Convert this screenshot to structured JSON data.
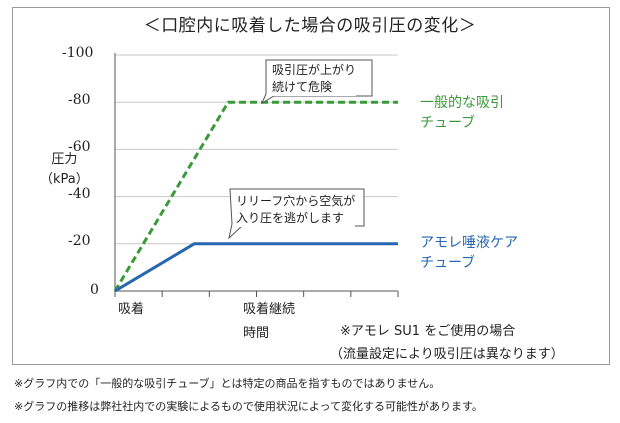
{
  "title": "＜口腔内に吸着した場合の吸引圧の変化＞",
  "chart_data": {
    "type": "line",
    "ylabel_line1": "圧力",
    "ylabel_line2": "（kPa）",
    "xlabel": "時間",
    "y_ticks": [
      "-100",
      "-80",
      "-60",
      "-40",
      "-20",
      "0"
    ],
    "ylim": [
      0,
      -100
    ],
    "x_ticks": [
      "吸着",
      "吸着継続"
    ],
    "grid": "horizontal",
    "series": [
      {
        "name": "一般的な吸引チューブ",
        "name_line1": "一般的な吸引",
        "name_line2": "チューブ",
        "color": "#3a9a3a",
        "style": "dashed",
        "points": [
          [
            0,
            0
          ],
          [
            0.4,
            -80
          ],
          [
            1.0,
            -80
          ]
        ]
      },
      {
        "name": "アモレ唾液ケアチューブ",
        "name_line1": "アモレ唾液ケア",
        "name_line2": "チューブ",
        "color": "#2766b0",
        "style": "solid",
        "points": [
          [
            0,
            0
          ],
          [
            0.28,
            -20
          ],
          [
            1.0,
            -20
          ]
        ]
      }
    ],
    "annotations": [
      {
        "line1": "吸引圧が上がり",
        "line2": "続けて危険"
      },
      {
        "line1": "リリーフ穴から空気が",
        "line2": "入り圧を逃がします"
      }
    ]
  },
  "notes": {
    "product": "※アモレ SU1 をご使用の場合",
    "flow": "（流量設定により吸引圧は異なります）"
  },
  "footnotes": [
    "※グラフ内での「一般的な吸引チューブ」とは特定の商品を指すものではありません。",
    "※グラフの推移は弊社社内での実験によるもので使用状況によって変化する可能性があります。"
  ]
}
